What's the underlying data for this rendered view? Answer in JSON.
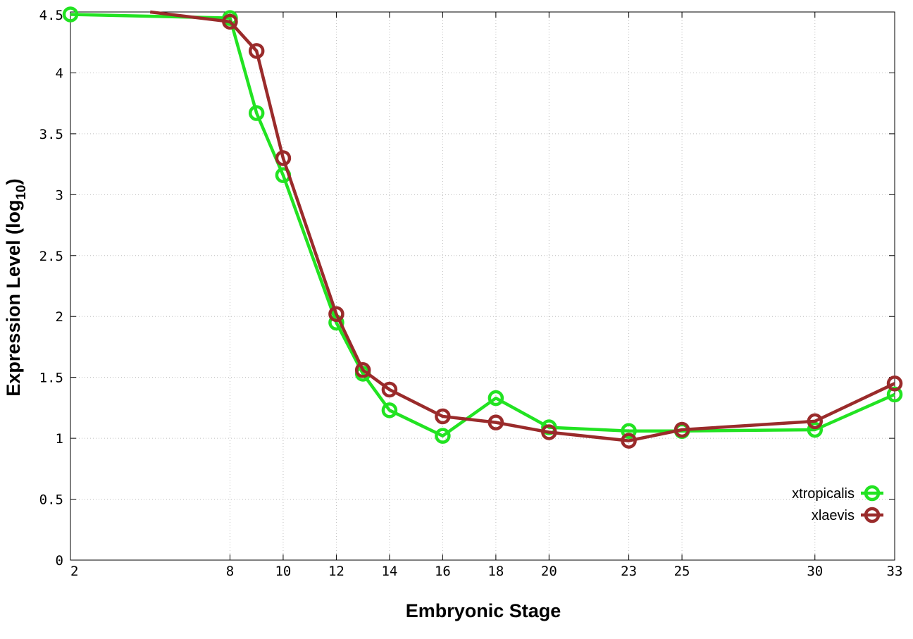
{
  "chart_data": {
    "type": "line",
    "title": "",
    "xlabel": "Embryonic Stage",
    "ylabel": "Expression Level (log",
    "ylabel_sub": "10",
    "ylabel_close": ")",
    "xlim": [
      2,
      33
    ],
    "ylim": [
      0,
      4.5
    ],
    "x_ticks": [
      2,
      8,
      10,
      12,
      14,
      16,
      18,
      20,
      23,
      25,
      30,
      33
    ],
    "y_ticks": [
      0,
      0.5,
      1,
      1.5,
      2,
      2.5,
      3,
      3.5,
      4,
      4.5
    ],
    "y_tick_labels": [
      "0",
      "0.5",
      "1",
      "1.5",
      "2",
      "2.5",
      "3",
      "3.5",
      "4",
      "4.5"
    ],
    "grid": true,
    "legend_position": "bottom-right",
    "series": [
      {
        "name": "xtropicalis",
        "color": "#22e322",
        "x": [
          2,
          8,
          9,
          10,
          12,
          13,
          14,
          16,
          18,
          20,
          23,
          25,
          30,
          33
        ],
        "y": [
          4.48,
          4.45,
          3.67,
          3.16,
          1.95,
          1.53,
          1.23,
          1.02,
          1.33,
          1.09,
          1.06,
          1.06,
          1.07,
          1.36
        ]
      },
      {
        "name": "xlaevis",
        "color": "#9a2b2b",
        "start_x": 5,
        "start_y": 4.5,
        "x": [
          8,
          9,
          10,
          12,
          13,
          14,
          16,
          18,
          20,
          23,
          25,
          30,
          33
        ],
        "y": [
          4.42,
          4.18,
          3.3,
          2.02,
          1.56,
          1.4,
          1.18,
          1.13,
          1.05,
          0.98,
          1.07,
          1.14,
          1.45
        ]
      }
    ]
  }
}
